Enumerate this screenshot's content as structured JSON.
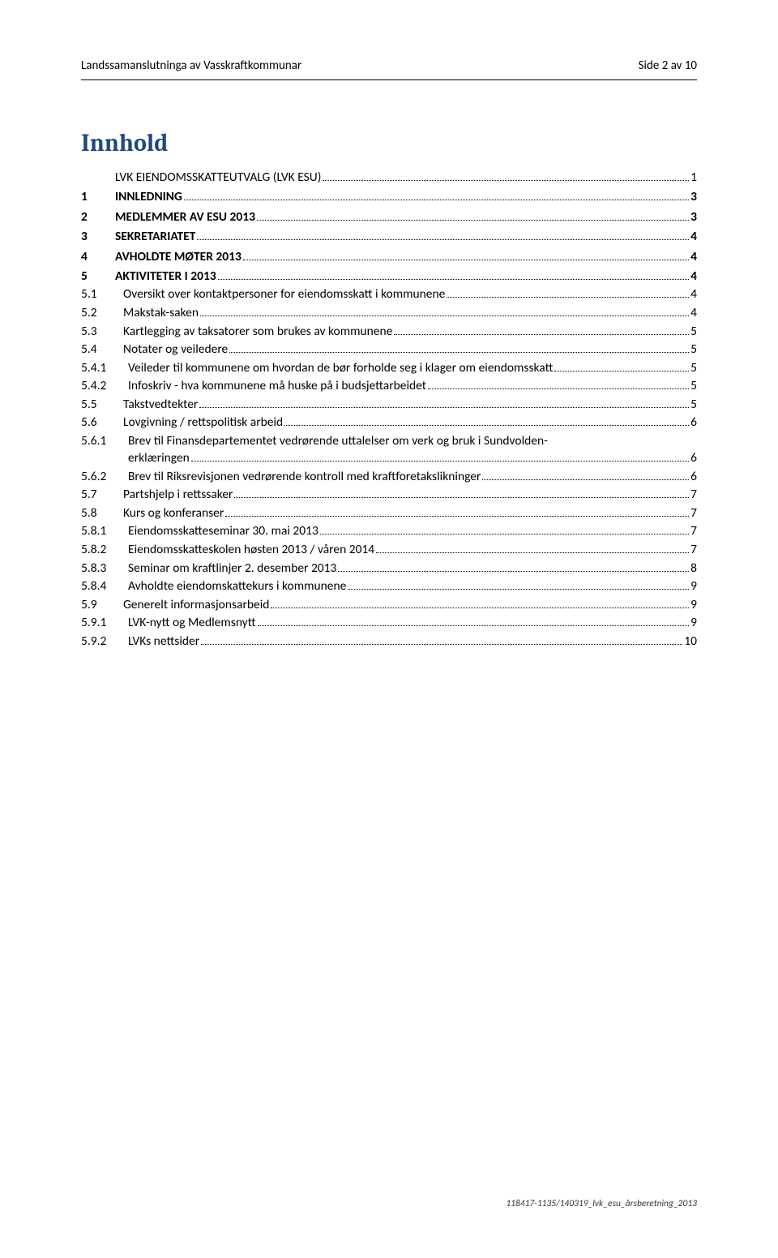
{
  "header": {
    "left": "Landssamanslutninga av Vasskraftkommunar",
    "right": "Side 2 av 10"
  },
  "title": "Innhold",
  "toc": [
    {
      "num": "",
      "text": "LVK EIENDOMSSKATTEUTVALG (LVK ESU)",
      "page": "1",
      "level": 1,
      "bold": false
    },
    {
      "num": "1",
      "text": "INNLEDNING",
      "page": "3",
      "level": 1,
      "bold": true,
      "gap": true
    },
    {
      "num": "2",
      "text": "MEDLEMMER AV ESU 2013",
      "page": "3",
      "level": 1,
      "bold": true,
      "gap": true
    },
    {
      "num": "3",
      "text": "SEKRETARIATET",
      "page": "4",
      "level": 1,
      "bold": true,
      "gap": true
    },
    {
      "num": "4",
      "text": "AVHOLDTE MØTER 2013",
      "page": "4",
      "level": 1,
      "bold": true,
      "gap": true
    },
    {
      "num": "5",
      "text": "AKTIVITETER I 2013",
      "page": "4",
      "level": 1,
      "bold": true,
      "gap": true
    },
    {
      "num": "5.1",
      "text": "Oversikt over kontaktpersoner for eiendomsskatt i kommunene",
      "page": "4",
      "level": 2
    },
    {
      "num": "5.2",
      "text": "Makstak-saken",
      "page": "4",
      "level": 2
    },
    {
      "num": "5.3",
      "text": "Kartlegging av taksatorer som brukes av kommunene",
      "page": "5",
      "level": 2
    },
    {
      "num": "5.4",
      "text": "Notater og veiledere",
      "page": "5",
      "level": 2
    },
    {
      "num": "5.4.1",
      "text": "Veileder til kommunene om hvordan de bør forholde seg i klager om eiendomsskatt",
      "page": "5",
      "level": 3
    },
    {
      "num": "5.4.2",
      "text": "Infoskriv - hva kommunene må huske på i budsjettarbeidet",
      "page": "5",
      "level": 3
    },
    {
      "num": "5.5",
      "text": "Takstvedtekter",
      "page": "5",
      "level": 2
    },
    {
      "num": "5.6",
      "text": "Lovgivning / rettspolitisk arbeid",
      "page": "6",
      "level": 2
    },
    {
      "num": "5.6.1",
      "text1": "Brev til Finansdepartementet vedrørende uttalelser om verk og bruk i Sundvolden-",
      "text2": "erklæringen",
      "page": "6",
      "level": 3,
      "wrap": true
    },
    {
      "num": "5.6.2",
      "text": "Brev til Riksrevisjonen vedrørende kontroll med kraftforetakslikninger",
      "page": "6",
      "level": 3
    },
    {
      "num": "5.7",
      "text": "Partshjelp i rettssaker",
      "page": "7",
      "level": 2
    },
    {
      "num": "5.8",
      "text": "Kurs og konferanser",
      "page": "7",
      "level": 2
    },
    {
      "num": "5.8.1",
      "text": "Eiendomsskatteseminar 30. mai 2013",
      "page": "7",
      "level": 3
    },
    {
      "num": "5.8.2",
      "text": "Eiendomsskatteskolen høsten 2013 / våren 2014",
      "page": "7",
      "level": 3
    },
    {
      "num": "5.8.3",
      "text": "Seminar om kraftlinjer 2. desember 2013",
      "page": "8",
      "level": 3
    },
    {
      "num": "5.8.4",
      "text": "Avholdte eiendomskattekurs i kommunene",
      "page": "9",
      "level": 3
    },
    {
      "num": "5.9",
      "text": "Generelt informasjonsarbeid",
      "page": "9",
      "level": 2
    },
    {
      "num": "5.9.1",
      "text": "LVK-nytt og Medlemsnytt",
      "page": "9",
      "level": 3
    },
    {
      "num": "5.9.2",
      "text": "LVKs nettsider",
      "page": "10",
      "level": 3
    }
  ],
  "footer": "118417-1135/140319_lvk_esu_årsberetning_2013"
}
